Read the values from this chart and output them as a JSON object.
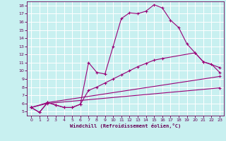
{
  "xlabel": "Windchill (Refroidissement éolien,°C)",
  "bg_color": "#c8f0f0",
  "line_color": "#990077",
  "grid_color": "#ffffff",
  "x_ticks": [
    0,
    1,
    2,
    3,
    4,
    5,
    6,
    7,
    8,
    9,
    10,
    11,
    12,
    13,
    14,
    15,
    16,
    17,
    18,
    19,
    20,
    21,
    22,
    23
  ],
  "y_ticks": [
    5,
    6,
    7,
    8,
    9,
    10,
    11,
    12,
    13,
    14,
    15,
    16,
    17,
    18
  ],
  "ylim": [
    4.5,
    18.5
  ],
  "xlim": [
    -0.5,
    23.5
  ],
  "line1_x": [
    0,
    1,
    2,
    3,
    4,
    5,
    6,
    7,
    8,
    9,
    10,
    11,
    12,
    13,
    14,
    15,
    16,
    17,
    18,
    19,
    20,
    21,
    23
  ],
  "line1_y": [
    5.5,
    4.9,
    6.1,
    5.8,
    5.5,
    5.5,
    5.9,
    11.0,
    9.8,
    9.6,
    13.0,
    16.4,
    17.1,
    17.0,
    17.3,
    18.1,
    17.7,
    16.2,
    15.3,
    13.3,
    12.2,
    11.1,
    10.4
  ],
  "line2_x": [
    0,
    1,
    2,
    3,
    4,
    5,
    6,
    7,
    8,
    9,
    10,
    11,
    12,
    13,
    14,
    15,
    16,
    20,
    21,
    22,
    23
  ],
  "line2_y": [
    5.5,
    4.9,
    6.1,
    5.8,
    5.5,
    5.5,
    5.9,
    7.6,
    8.0,
    8.5,
    9.0,
    9.5,
    10.0,
    10.5,
    10.9,
    11.3,
    11.5,
    12.2,
    11.1,
    10.8,
    9.8
  ],
  "line3_x": [
    0,
    2,
    23
  ],
  "line3_y": [
    5.5,
    6.1,
    9.3
  ],
  "line4_x": [
    0,
    2,
    23
  ],
  "line4_y": [
    5.5,
    6.0,
    7.9
  ]
}
